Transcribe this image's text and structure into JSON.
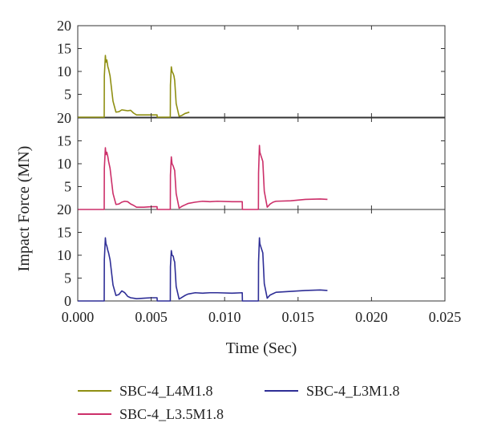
{
  "chart_data": {
    "type": "line",
    "xlabel": "Time (Sec)",
    "ylabel": "Impact Force (MN)",
    "xlim": [
      0.0,
      0.025
    ],
    "x_ticks": [
      "0.000",
      "0.005",
      "0.010",
      "0.015",
      "0.020",
      "0.025"
    ],
    "x_tick_values": [
      0.0,
      0.005,
      0.01,
      0.015,
      0.02,
      0.025
    ],
    "ylim": [
      0,
      20
    ],
    "y_ticks": [
      "0",
      "5",
      "10",
      "15",
      "20"
    ],
    "y_tick_values": [
      0,
      5,
      10,
      15,
      20
    ],
    "stacked_panels": true,
    "grid": false,
    "legend_position": "bottom",
    "series": [
      {
        "name": "SBC-4_L4M1.8",
        "color": "#8f8f12",
        "x": [
          0.0,
          0.0018,
          0.00181,
          0.00188,
          0.00192,
          0.00198,
          0.00205,
          0.0021,
          0.0022,
          0.0024,
          0.0026,
          0.0028,
          0.003,
          0.0032,
          0.0034,
          0.0036,
          0.0038,
          0.004,
          0.0045,
          0.005,
          0.0054,
          0.00541,
          0.0063,
          0.00631,
          0.00637,
          0.00642,
          0.0065,
          0.00655,
          0.0066,
          0.0067,
          0.0069,
          0.0071,
          0.0073,
          0.0075,
          0.0076
        ],
        "y": [
          0,
          0,
          9.0,
          13.5,
          12.0,
          12.5,
          11.0,
          10.5,
          9.0,
          3.5,
          1.1,
          1.2,
          1.6,
          1.5,
          1.4,
          1.5,
          0.9,
          0.5,
          0.5,
          0.5,
          0.5,
          0,
          0,
          7.0,
          11.0,
          10.0,
          9.5,
          9.0,
          8.0,
          3.0,
          0.2,
          0.4,
          0.8,
          1.0,
          1.1
        ]
      },
      {
        "name": "SBC-4_L3.5M1.8",
        "color": "#cc2f69",
        "x": [
          0.0,
          0.0018,
          0.00181,
          0.00188,
          0.00192,
          0.00198,
          0.00205,
          0.0021,
          0.0022,
          0.0024,
          0.0026,
          0.0028,
          0.003,
          0.0032,
          0.0034,
          0.0036,
          0.0038,
          0.004,
          0.0045,
          0.005,
          0.0054,
          0.00541,
          0.0063,
          0.00631,
          0.00637,
          0.00642,
          0.0065,
          0.00655,
          0.0066,
          0.0067,
          0.0069,
          0.0071,
          0.0073,
          0.0075,
          0.008,
          0.0085,
          0.009,
          0.0095,
          0.0105,
          0.0112,
          0.01121,
          0.0123,
          0.01231,
          0.01237,
          0.0124,
          0.0125,
          0.01255,
          0.0126,
          0.0127,
          0.0129,
          0.0131,
          0.0133,
          0.0135,
          0.0145,
          0.0155,
          0.0165,
          0.017
        ],
        "y": [
          0,
          0,
          9.0,
          13.5,
          12.0,
          12.5,
          11.5,
          10.5,
          9.0,
          3.5,
          1.1,
          1.2,
          1.6,
          1.8,
          1.7,
          1.2,
          0.9,
          0.5,
          0.5,
          0.6,
          0.6,
          0,
          0,
          7.5,
          11.5,
          10.0,
          9.5,
          9.0,
          8.5,
          3.5,
          0.3,
          0.7,
          1.0,
          1.3,
          1.6,
          1.8,
          1.7,
          1.8,
          1.7,
          1.7,
          0,
          0,
          8.0,
          14.0,
          12.5,
          11.5,
          11.0,
          10.5,
          4.0,
          0.5,
          1.2,
          1.6,
          1.8,
          1.9,
          2.2,
          2.3,
          2.2
        ]
      },
      {
        "name": "SBC-4_L3M1.8",
        "color": "#2e2e96",
        "x": [
          0.0,
          0.0018,
          0.00181,
          0.00188,
          0.00192,
          0.00198,
          0.00205,
          0.0021,
          0.0022,
          0.0024,
          0.0026,
          0.0028,
          0.003,
          0.0032,
          0.0034,
          0.0036,
          0.0038,
          0.004,
          0.0045,
          0.005,
          0.0054,
          0.00541,
          0.0063,
          0.00631,
          0.00637,
          0.00642,
          0.0065,
          0.00655,
          0.0066,
          0.0067,
          0.0069,
          0.0071,
          0.0073,
          0.0075,
          0.008,
          0.0085,
          0.009,
          0.0095,
          0.0105,
          0.0112,
          0.01121,
          0.0123,
          0.01231,
          0.01237,
          0.0124,
          0.0125,
          0.01255,
          0.0126,
          0.0127,
          0.0129,
          0.0131,
          0.0133,
          0.0135,
          0.0145,
          0.0155,
          0.0165,
          0.017
        ],
        "y": [
          0,
          0,
          9.0,
          13.8,
          12.5,
          12.0,
          11.0,
          10.5,
          9.0,
          3.5,
          1.2,
          1.4,
          2.2,
          1.8,
          1.0,
          0.7,
          0.6,
          0.5,
          0.6,
          0.7,
          0.7,
          0,
          0,
          7.5,
          11.0,
          10.0,
          9.8,
          9.0,
          8.5,
          3.2,
          0.4,
          0.8,
          1.2,
          1.5,
          1.8,
          1.7,
          1.8,
          1.8,
          1.7,
          1.8,
          0,
          0,
          8.5,
          13.8,
          12.5,
          11.5,
          11.0,
          10.5,
          3.8,
          0.6,
          1.3,
          1.6,
          1.9,
          2.1,
          2.3,
          2.4,
          2.3
        ]
      }
    ]
  }
}
